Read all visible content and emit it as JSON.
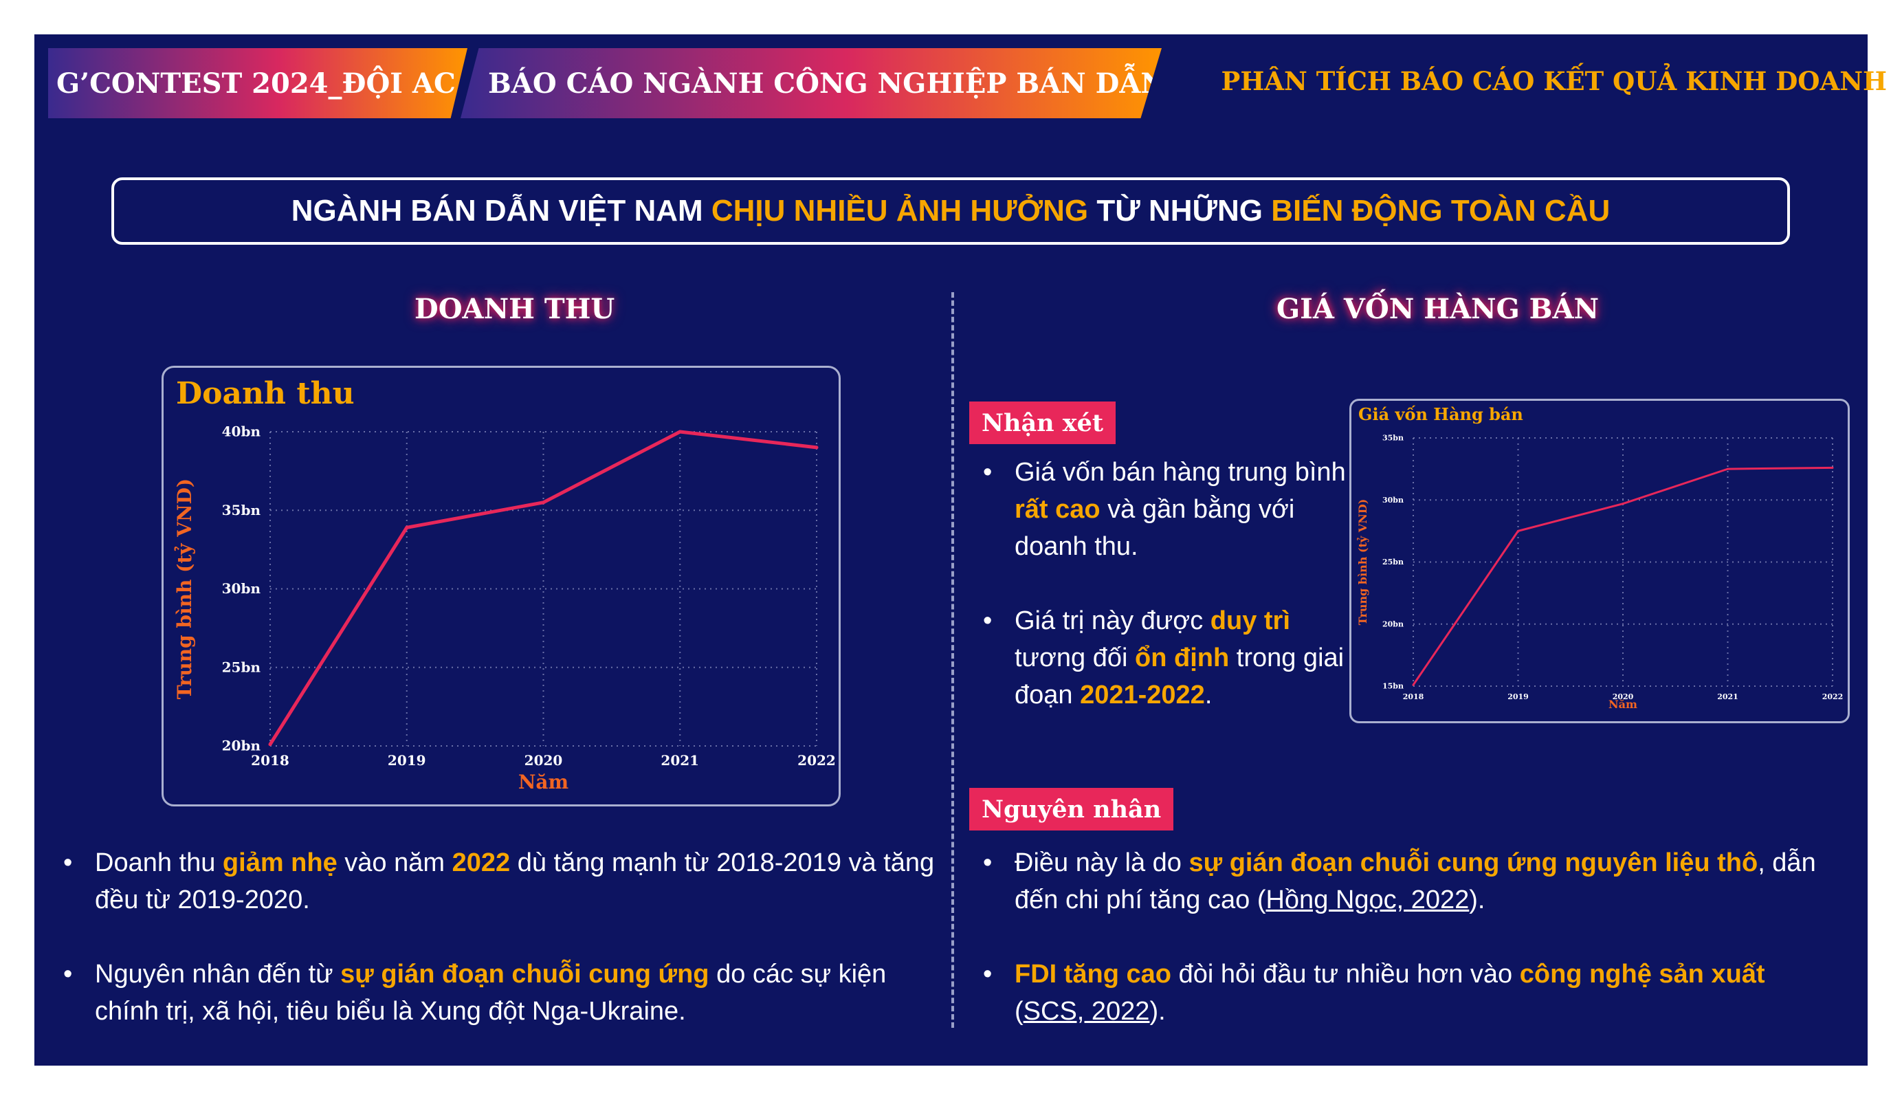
{
  "header": {
    "contest_label": "G’CONTEST 2024_ĐỘI AC",
    "report_label": "BÁO CÁO NGÀNH CÔNG NGHIỆP BÁN DẪN",
    "section_label": "PHÂN TÍCH BÁO CÁO KẾT QUẢ KINH DOANH"
  },
  "headline": {
    "part1": "NGÀNH BÁN DẪN VIỆT NAM ",
    "part2": "CHỊU NHIỀU ẢNH HƯỞNG",
    "part3": " TỪ NHỮNG ",
    "part4": "BIẾN ĐỘNG TOÀN CẦU"
  },
  "left": {
    "title": "DOANH THU",
    "bullet1": {
      "t1": "Doanh thu ",
      "b1": "giảm nhẹ",
      "t2": " vào năm ",
      "b2": "2022",
      "t3": " dù tăng mạnh từ 2018-2019 và tăng đều từ 2019-2020."
    },
    "bullet2": {
      "t1": "Nguyên nhân đến từ ",
      "b1": "sự gián đoạn chuỗi cung ứng",
      "t2": " do các sự kiện chính trị, xã hội, tiêu biểu là Xung đột Nga-Ukraine."
    }
  },
  "right": {
    "title": "GIÁ VỐN HÀNG BÁN",
    "tag_comment": "Nhận xét",
    "comment1": {
      "t1": "Giá vốn bán hàng trung bình ",
      "b1": "rất cao",
      "t2": " và gần bằng với doanh thu."
    },
    "comment2": {
      "t1": "Giá trị này được ",
      "b1": "duy trì",
      "t2": " tương đối ",
      "b2": "ổn định",
      "t3": " trong giai đoạn ",
      "b3": "2021-2022",
      "t4": "."
    },
    "tag_reason": "Nguyên nhân",
    "reason1": {
      "t1": "Điều này là do ",
      "b1": "sự gián đoạn chuỗi cung ứng nguyên liệu thô",
      "t2": ", dẫn đến chi phí tăng cao (",
      "link": "Hồng Ngọc, 2022",
      "t3": ")."
    },
    "reason2": {
      "b1": "FDI tăng cao",
      "t1": " đòi hỏi đầu tư nhiều hơn vào ",
      "b2": "công nghệ sản xuất",
      "t2": " (",
      "link": "SCS, 2022",
      "t3": ")."
    }
  },
  "colors": {
    "background": "#0d1461",
    "accent": "#f7a600",
    "line": "#e8275a",
    "tag": "#e8275a"
  },
  "chart_data": [
    {
      "type": "line",
      "title": "Doanh thu",
      "xlabel": "Năm",
      "ylabel": "Trung bình (tỷ VND)",
      "x": [
        "2018",
        "2019",
        "2020",
        "2021",
        "2022"
      ],
      "y": [
        20.1,
        33.9,
        35.5,
        40.0,
        39.0
      ],
      "yticks": [
        "20bn",
        "25bn",
        "30bn",
        "35bn",
        "40bn"
      ],
      "ylim": [
        20,
        40
      ],
      "grid": true
    },
    {
      "type": "line",
      "title": "Giá vốn Hàng bán",
      "xlabel": "Năm",
      "ylabel": "Trung bình (tỷ VND)",
      "x": [
        "2018",
        "2019",
        "2020",
        "2021",
        "2022"
      ],
      "y": [
        15.1,
        27.5,
        29.7,
        32.5,
        32.6
      ],
      "yticks": [
        "15bn",
        "20bn",
        "25bn",
        "30bn",
        "35bn"
      ],
      "ylim": [
        15,
        35
      ],
      "grid": true
    }
  ]
}
